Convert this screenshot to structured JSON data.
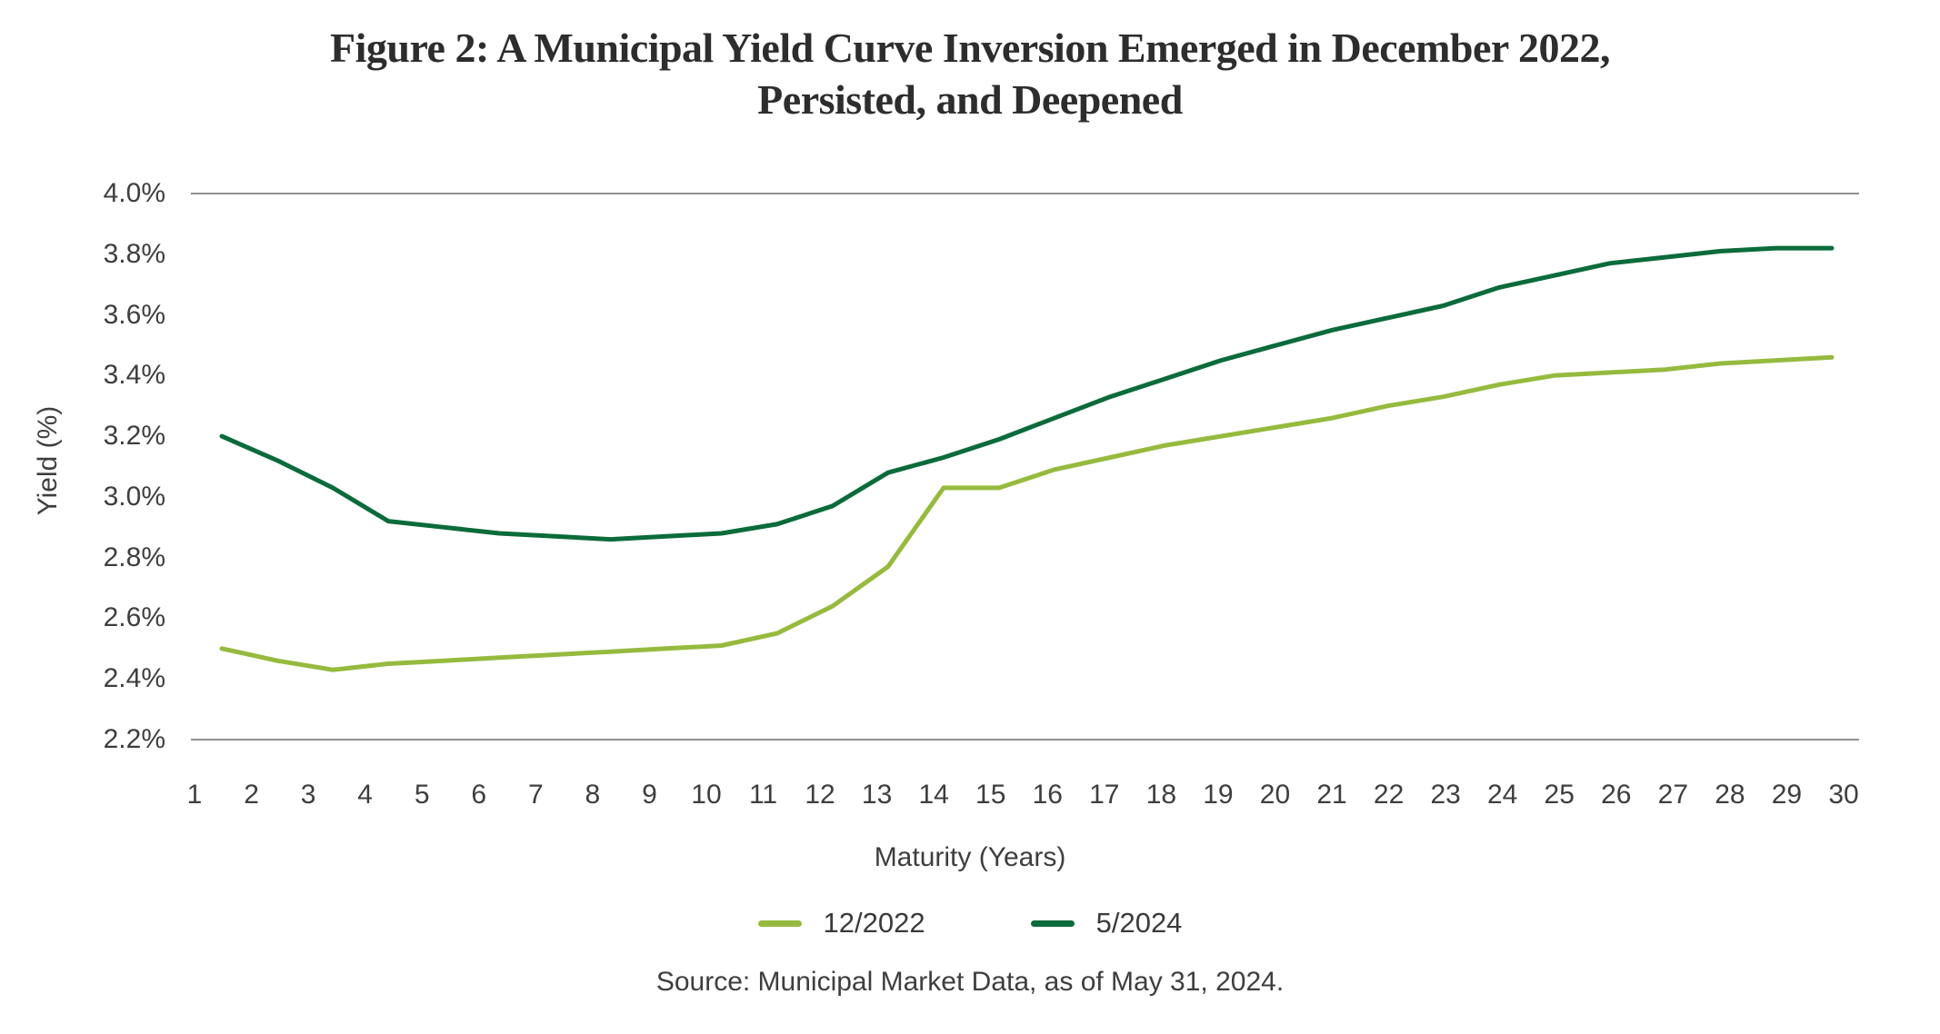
{
  "figure": {
    "title_line1": "Figure 2: A Municipal Yield Curve Inversion Emerged in December 2022,",
    "title_line2": "Persisted, and Deepened",
    "source": "Source: Municipal Market Data, as of May 31, 2024."
  },
  "colors": {
    "series_12_2022": "#96BA3E",
    "series_5_2024": "#0B6B3B",
    "gridline": "#8F8F8F",
    "title_text": "#2D2D2D",
    "axis_text": "#3E3E3E"
  },
  "chart_data": {
    "type": "line",
    "title": "Figure 2: A Municipal Yield Curve Inversion Emerged in December 2022, Persisted, and Deepened",
    "xlabel": "Maturity (Years)",
    "ylabel": "Yield (%)",
    "x": [
      1,
      2,
      3,
      4,
      5,
      6,
      7,
      8,
      9,
      10,
      11,
      12,
      13,
      14,
      15,
      16,
      17,
      18,
      19,
      20,
      21,
      22,
      23,
      24,
      25,
      26,
      27,
      28,
      29,
      30
    ],
    "x_tick_labels": [
      "1",
      "2",
      "3",
      "4",
      "5",
      "6",
      "7",
      "8",
      "9",
      "10",
      "11",
      "12",
      "13",
      "14",
      "15",
      "16",
      "17",
      "18",
      "19",
      "20",
      "21",
      "22",
      "23",
      "24",
      "25",
      "26",
      "27",
      "28",
      "29",
      "30"
    ],
    "y_tick_labels": [
      "4.0%",
      "3.8%",
      "3.6%",
      "3.4%",
      "3.2%",
      "3.0%",
      "2.8%",
      "2.6%",
      "2.4%",
      "2.2%"
    ],
    "ylim": [
      2.2,
      4.0
    ],
    "y_tick_step": 0.2,
    "grid": "top and bottom horizontal border lines only",
    "legend_position": "bottom-center",
    "series": [
      {
        "name": "12/2022",
        "color": "#96BA3E",
        "values": [
          2.5,
          2.46,
          2.43,
          2.45,
          2.46,
          2.47,
          2.48,
          2.49,
          2.5,
          2.51,
          2.55,
          2.64,
          2.77,
          3.03,
          3.03,
          3.09,
          3.13,
          3.17,
          3.2,
          3.23,
          3.26,
          3.3,
          3.33,
          3.37,
          3.4,
          3.41,
          3.42,
          3.44,
          3.45,
          3.46
        ]
      },
      {
        "name": "5/2024",
        "color": "#0B6B3B",
        "values": [
          3.2,
          3.12,
          3.03,
          2.92,
          2.9,
          2.88,
          2.87,
          2.86,
          2.87,
          2.88,
          2.91,
          2.97,
          3.08,
          3.13,
          3.19,
          3.26,
          3.33,
          3.39,
          3.45,
          3.5,
          3.55,
          3.59,
          3.63,
          3.69,
          3.73,
          3.77,
          3.79,
          3.81,
          3.82,
          3.82
        ]
      }
    ]
  }
}
